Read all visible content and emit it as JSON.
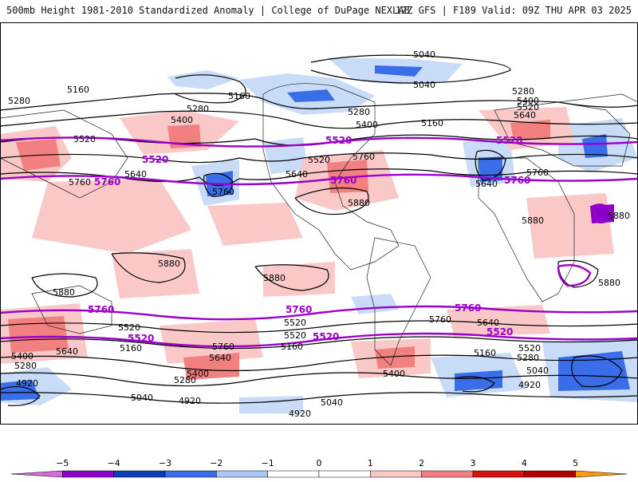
{
  "header": {
    "left_title": "500mb Height 1981-2010 Standardized Anomaly | College of DuPage NEXLAB",
    "right_title": "12Z GFS | F189 Valid: 09Z THU APR 03 2025"
  },
  "map": {
    "projection": "global cylindrical equidistant",
    "contour_units": "dam-scale heights (m)",
    "black_contour_labels": [
      {
        "text": "5040",
        "region": "north-pacific-north"
      },
      {
        "text": "5160",
        "region": "east-asia-north"
      },
      {
        "text": "5280",
        "region": "far-west"
      },
      {
        "text": "5280",
        "region": "north-pacific"
      },
      {
        "text": "5400",
        "region": "north-pacific"
      },
      {
        "text": "5160",
        "region": "north-pacific"
      },
      {
        "text": "5520",
        "region": "central-asia"
      },
      {
        "text": "5640",
        "region": "western-pacific"
      },
      {
        "text": "5760",
        "region": "east-china-sea"
      },
      {
        "text": "5760",
        "region": "central-pacific-low"
      },
      {
        "text": "5640",
        "region": "pacific-nw"
      },
      {
        "text": "5520",
        "region": "north-america"
      },
      {
        "text": "5760",
        "region": "central-usa"
      },
      {
        "text": "5880",
        "region": "mexico"
      },
      {
        "text": "5400",
        "region": "canada"
      },
      {
        "text": "5280",
        "region": "canada"
      },
      {
        "text": "5160",
        "region": "canada"
      },
      {
        "text": "5040",
        "region": "greenland"
      },
      {
        "text": "5040",
        "region": "arctic"
      },
      {
        "text": "5640",
        "region": "north-atlantic-low"
      },
      {
        "text": "5280",
        "region": "scandinavia"
      },
      {
        "text": "5400",
        "region": "scandinavia"
      },
      {
        "text": "5520",
        "region": "scandinavia"
      },
      {
        "text": "5640",
        "region": "europe"
      },
      {
        "text": "5760",
        "region": "north-africa"
      },
      {
        "text": "5880",
        "region": "africa"
      },
      {
        "text": "5880",
        "region": "east-africa"
      },
      {
        "text": "5880",
        "region": "southern-africa"
      },
      {
        "text": "5880",
        "region": "indian-ocean"
      },
      {
        "text": "5880",
        "region": "maritime-continent"
      },
      {
        "text": "5880",
        "region": "south-pacific"
      },
      {
        "text": "5760",
        "region": "south-america"
      },
      {
        "text": "5640",
        "region": "south-atlantic"
      },
      {
        "text": "5520",
        "region": "south-atlantic"
      },
      {
        "text": "5520",
        "region": "indian-ocean-south"
      },
      {
        "text": "5280",
        "region": "south-indian"
      },
      {
        "text": "5160",
        "region": "south-atlantic"
      },
      {
        "text": "5040",
        "region": "south-indian"
      },
      {
        "text": "4920",
        "region": "south-indian"
      },
      {
        "text": "5520",
        "region": "south-pacific-west"
      },
      {
        "text": "5640",
        "region": "south-pacific-west"
      },
      {
        "text": "5400",
        "region": "south-pacific-west"
      },
      {
        "text": "5280",
        "region": "south-pacific-west"
      },
      {
        "text": "5160",
        "region": "south-pacific-west"
      },
      {
        "text": "5760",
        "region": "south-pacific-central"
      },
      {
        "text": "5640",
        "region": "south-pacific-central"
      },
      {
        "text": "5400",
        "region": "south-pacific-central"
      },
      {
        "text": "5280",
        "region": "south-pacific-central"
      },
      {
        "text": "5040",
        "region": "south-pacific-central"
      },
      {
        "text": "4920",
        "region": "south-pacific-central"
      },
      {
        "text": "5160",
        "region": "south-pacific-east"
      },
      {
        "text": "5520",
        "region": "south-pacific-east"
      },
      {
        "text": "5400",
        "region": "drake-passage"
      },
      {
        "text": "5040",
        "region": "southern-ocean"
      },
      {
        "text": "4920",
        "region": "southern-ocean-center"
      },
      {
        "text": "5400",
        "region": "far-west-south"
      },
      {
        "text": "5280",
        "region": "far-west-south"
      },
      {
        "text": "4920",
        "region": "far-west-south"
      }
    ],
    "purple_contour_labels": [
      {
        "text": "5520",
        "region": "north-pacific-west"
      },
      {
        "text": "5760",
        "region": "western-pacific"
      },
      {
        "text": "5520",
        "region": "north-america"
      },
      {
        "text": "5760",
        "region": "gulf-of-mexico"
      },
      {
        "text": "5520",
        "region": "north-atlantic"
      },
      {
        "text": "5760",
        "region": "north-atlantic-africa"
      },
      {
        "text": "5760",
        "region": "south-indian-west"
      },
      {
        "text": "5760",
        "region": "south-pacific"
      },
      {
        "text": "5760",
        "region": "south-atlantic"
      },
      {
        "text": "5520",
        "region": "south-pacific-west"
      },
      {
        "text": "5520",
        "region": "south-pacific-east"
      },
      {
        "text": "5520",
        "region": "south-atlantic-east"
      }
    ]
  },
  "colorbar": {
    "ticks": [
      "−5",
      "−4",
      "−3",
      "−2",
      "−1",
      "0",
      "1",
      "2",
      "3",
      "4",
      "5"
    ],
    "colors": [
      "#d46adc",
      "#8a00c8",
      "#0a3fb8",
      "#3a6ee8",
      "#a8c8f8",
      "#ffffff",
      "#ffffff",
      "#fbc8c8",
      "#f28080",
      "#d81010",
      "#b00000",
      "#ff9a10"
    ]
  }
}
